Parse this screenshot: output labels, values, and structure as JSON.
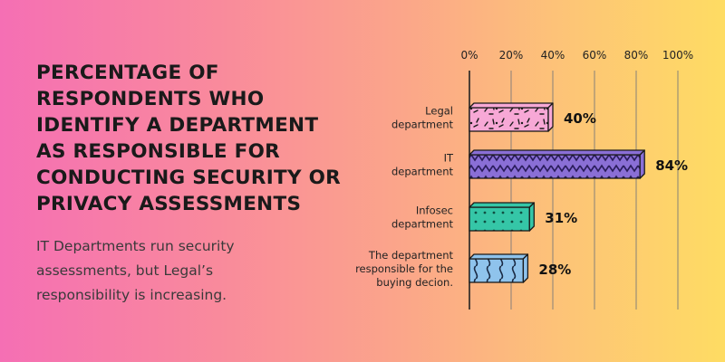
{
  "heading": {
    "title": "PERCENTAGE OF RESPONDENTS WHO IDENTIFY A DEPARTMENT AS RESPONSIBLE FOR CONDUCTING SECURITY OR PRIVACY ASSESSMENTS",
    "subtitle": "IT Departments run security assessments, but Legal’s responsibility is increasing."
  },
  "chart_data": {
    "type": "bar",
    "orientation": "horizontal",
    "title": "PERCENTAGE OF RESPONDENTS WHO IDENTIFY A DEPARTMENT AS RESPONSIBLE FOR CONDUCTING SECURITY OR PRIVACY ASSESSMENTS",
    "categories": [
      [
        "Legal",
        "department"
      ],
      [
        "IT",
        "department"
      ],
      [
        "Infosec",
        "department"
      ],
      [
        "The department",
        "responsible for the",
        "buying decion."
      ]
    ],
    "values": [
      40,
      84,
      31,
      28
    ],
    "value_labels": [
      "40%",
      "84%",
      "31%",
      "28%"
    ],
    "xlim": [
      0,
      100
    ],
    "xticks": [
      0,
      20,
      40,
      60,
      80,
      100
    ],
    "xtick_labels": [
      "0%",
      "20%",
      "40%",
      "60%",
      "80%",
      "100%"
    ],
    "axis_position": "top",
    "grid": true,
    "colors": [
      "#f7a8d6",
      "#8a6fd6",
      "#35c6a7",
      "#8fc3ec"
    ],
    "patterns": [
      "confetti",
      "zigzag",
      "dots",
      "waves"
    ]
  }
}
